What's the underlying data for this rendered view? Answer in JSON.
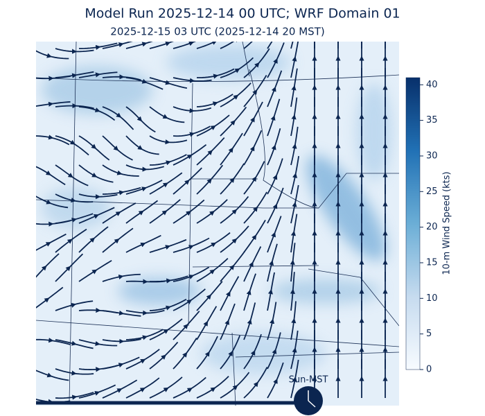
{
  "header": {
    "title": "Model Run 2025-12-14 00 UTC; WRF Domain 01",
    "subtitle": "2025-12-15 03 UTC  (2025-12-14 20 MST)"
  },
  "colorbar": {
    "label": "10-m Wind Speed (kts)",
    "lim": [
      0,
      41
    ],
    "ticks": [
      0,
      5,
      10,
      15,
      20,
      25,
      30,
      35,
      40
    ]
  },
  "timeline": {
    "label": "Sun-MST"
  }
}
